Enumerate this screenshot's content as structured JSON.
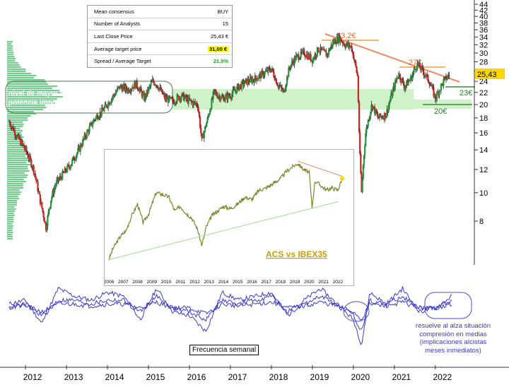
{
  "table": {
    "rows": [
      {
        "label": "Mean consensus",
        "value": "BUY",
        "highlight": "none"
      },
      {
        "label": "Number of Analysts",
        "value": "15",
        "highlight": "none"
      },
      {
        "label": "Last Close Price",
        "value": "25,43 €",
        "highlight": "none"
      },
      {
        "label": "Average target price",
        "value": "31,00 €",
        "highlight": "yellow"
      },
      {
        "label": "Spread / Average Target",
        "value": "21,9%",
        "highlight": "green"
      }
    ]
  },
  "annotations": {
    "resistance_top": "33,2€",
    "resistance_mid": "27€",
    "support_a": "23€",
    "support_b": "20€",
    "last_price_label": "25,43",
    "support_text_line1": "nivel de mayor negociación",
    "support_text_line2": "potencia importante soporte",
    "frequency": "Frecuencia semanal",
    "note_line1": "resuelve al alza situación",
    "note_line2": "compresión en medias",
    "note_line3": "(implicaciones alcistas",
    "note_line4": "meses inmediatos)"
  },
  "inset": {
    "title": "ACS vs IBEX35",
    "xticks": [
      "2006",
      "2007",
      "2008",
      "2009",
      "2010",
      "2011",
      "2012",
      "2013",
      "2014",
      "2015",
      "2016",
      "2017",
      "2018",
      "2019",
      "2020",
      "2021",
      "2022"
    ]
  },
  "chart_data": [
    {
      "type": "line",
      "title": "",
      "scale": "log",
      "xlabel": "",
      "ylabel": "",
      "ylim": [
        6.5,
        46
      ],
      "yticks": [
        8,
        10,
        12,
        14,
        16,
        18,
        20,
        22,
        24,
        26,
        28,
        30,
        32,
        34,
        36,
        38,
        40,
        42,
        44
      ],
      "ytick_labels": [
        "8",
        "10",
        "12",
        "14",
        "16",
        "18",
        "20",
        "22",
        "24",
        "26",
        "28",
        "30",
        "32",
        "34",
        "36",
        "38",
        "40",
        "42",
        "44"
      ],
      "xticks": [
        2012,
        2013,
        2014,
        2015,
        2016,
        2017,
        2018,
        2019,
        2020,
        2021,
        2022
      ],
      "xtick_labels": [
        "2012",
        "2013",
        "2014",
        "2015",
        "2016",
        "2017",
        "2018",
        "2019",
        "2020",
        "2021",
        "2022"
      ],
      "xlim": [
        2011.55,
        2022.9
      ],
      "series": [
        {
          "color": "#222222",
          "x": [
            2011.6,
            2011.8,
            2012.0,
            2012.2,
            2012.35,
            2012.5,
            2012.62,
            2012.75,
            2012.9,
            2013.1,
            2013.3,
            2013.5,
            2013.7,
            2013.9,
            2014.1,
            2014.3,
            2014.5,
            2014.7,
            2014.9,
            2015.1,
            2015.2,
            2015.4,
            2015.6,
            2015.8,
            2016.0,
            2016.2,
            2016.3,
            2016.45,
            2016.6,
            2016.8,
            2017.0,
            2017.2,
            2017.4,
            2017.6,
            2017.8,
            2018.0,
            2018.15,
            2018.3,
            2018.45,
            2018.6,
            2018.8,
            2019.0,
            2019.15,
            2019.35,
            2019.5,
            2019.65,
            2019.8,
            2019.95,
            2020.1,
            2020.15,
            2020.2,
            2020.3,
            2020.45,
            2020.6,
            2020.8,
            2020.95,
            2021.1,
            2021.25,
            2021.4,
            2021.55,
            2021.7,
            2021.85,
            2022.0,
            2022.1,
            2022.2,
            2022.35
          ],
          "y": [
            17.5,
            15.5,
            14,
            12,
            9.5,
            7.6,
            9.5,
            10.8,
            11.5,
            12.5,
            14,
            16,
            18,
            19.2,
            21,
            23,
            22.5,
            23.5,
            21,
            24,
            23.5,
            21,
            20.5,
            21.5,
            20.5,
            20,
            15,
            18,
            22,
            21,
            21.5,
            23,
            24,
            24.5,
            25.5,
            26.5,
            23.5,
            22,
            27,
            29,
            30,
            28.5,
            31,
            29.5,
            32.5,
            33.8,
            32,
            31.5,
            25,
            14,
            10,
            16,
            20,
            18,
            18.5,
            22,
            25.5,
            23,
            24.5,
            27.5,
            26,
            24,
            21,
            22.5,
            24,
            25.43
          ]
        }
      ]
    },
    {
      "type": "line",
      "title": "ACS vs IBEX35",
      "xlabel": "",
      "ylabel": "",
      "xlim": [
        2006,
        2022.5
      ],
      "ylim": [
        0,
        1
      ],
      "xticks": [
        2006,
        2007,
        2008,
        2009,
        2010,
        2011,
        2012,
        2013,
        2014,
        2015,
        2016,
        2017,
        2018,
        2019,
        2020,
        2021,
        2022
      ],
      "series": [
        {
          "color": "#7a8a2e",
          "x": [
            2006,
            2006.3,
            2006.8,
            2007.2,
            2007.6,
            2008.0,
            2008.4,
            2008.8,
            2009.3,
            2009.8,
            2010.2,
            2010.6,
            2011.0,
            2011.4,
            2011.8,
            2012.2,
            2012.5,
            2012.8,
            2013.2,
            2013.6,
            2014.0,
            2014.5,
            2015.0,
            2015.5,
            2016.0,
            2016.5,
            2017.0,
            2017.5,
            2018.0,
            2018.4,
            2018.8,
            2019.2,
            2019.6,
            2020.0,
            2020.2,
            2020.4,
            2020.8,
            2021.2,
            2021.6,
            2022.0,
            2022.3
          ],
          "y": [
            0.1,
            0.2,
            0.3,
            0.35,
            0.48,
            0.58,
            0.42,
            0.5,
            0.68,
            0.66,
            0.64,
            0.52,
            0.56,
            0.5,
            0.46,
            0.36,
            0.22,
            0.38,
            0.48,
            0.52,
            0.56,
            0.54,
            0.58,
            0.64,
            0.62,
            0.7,
            0.72,
            0.76,
            0.8,
            0.86,
            0.9,
            0.93,
            0.88,
            0.85,
            0.55,
            0.78,
            0.74,
            0.7,
            0.72,
            0.7,
            0.8
          ]
        },
        {
          "color": "#9fdc8f",
          "x": [
            2006,
            2022
          ],
          "y": [
            0.1,
            0.6
          ]
        },
        {
          "color": "#e98a5a",
          "x": [
            2019.2,
            2022.3
          ],
          "y": [
            0.95,
            0.82
          ]
        }
      ]
    },
    {
      "type": "line",
      "title": "",
      "xlabel": "",
      "ylabel": "",
      "xlim": [
        2011.55,
        2022.9
      ],
      "ylim": [
        -1,
        1
      ],
      "series": [
        {
          "color": "#3b3bd0",
          "x": [
            2011.6,
            2012.0,
            2012.4,
            2012.8,
            2013.2,
            2013.6,
            2014.0,
            2014.4,
            2014.8,
            2015.2,
            2015.6,
            2016.0,
            2016.4,
            2016.8,
            2017.2,
            2017.6,
            2018.0,
            2018.4,
            2018.8,
            2019.2,
            2019.6,
            2020.0,
            2020.2,
            2020.4,
            2020.8,
            2021.2,
            2021.6,
            2022.0,
            2022.4
          ],
          "y": [
            0.1,
            0.2,
            -0.4,
            0.5,
            0.3,
            0.2,
            0.4,
            0.3,
            -0.3,
            0.5,
            -0.1,
            -0.2,
            -0.6,
            0.4,
            0.2,
            0.3,
            0.4,
            -0.2,
            0.2,
            0.5,
            0.1,
            -0.3,
            -0.95,
            0.4,
            0.1,
            0.5,
            -0.1,
            0.0,
            0.3
          ]
        },
        {
          "color": "#3b3bd0",
          "x": [
            2011.6,
            2012.0,
            2012.4,
            2012.8,
            2013.2,
            2013.6,
            2014.0,
            2014.4,
            2014.8,
            2015.2,
            2015.6,
            2016.0,
            2016.4,
            2016.8,
            2017.2,
            2017.6,
            2018.0,
            2018.4,
            2018.8,
            2019.2,
            2019.6,
            2020.0,
            2020.2,
            2020.4,
            2020.8,
            2021.2,
            2021.6,
            2022.0,
            2022.4
          ],
          "y": [
            0.0,
            0.1,
            -0.2,
            0.2,
            0.2,
            0.1,
            0.2,
            0.2,
            -0.1,
            0.3,
            0.0,
            -0.1,
            -0.3,
            0.2,
            0.1,
            0.2,
            0.3,
            -0.1,
            0.1,
            0.3,
            0.1,
            -0.2,
            -0.6,
            0.2,
            0.1,
            0.3,
            0.0,
            0.0,
            0.2
          ]
        },
        {
          "color": "#3b3bd0",
          "x": [
            2011.6,
            2012.0,
            2012.4,
            2012.8,
            2013.2,
            2013.6,
            2014.0,
            2014.4,
            2014.8,
            2015.2,
            2015.6,
            2016.0,
            2016.4,
            2016.8,
            2017.2,
            2017.6,
            2018.0,
            2018.4,
            2018.8,
            2019.2,
            2019.6,
            2020.0,
            2020.2,
            2020.4,
            2020.8,
            2021.2,
            2021.6,
            2022.0,
            2022.4
          ],
          "y": [
            0.05,
            0.05,
            -0.1,
            0.1,
            0.1,
            0.05,
            0.1,
            0.1,
            0.0,
            0.15,
            0.0,
            0.0,
            -0.15,
            0.1,
            0.05,
            0.1,
            0.15,
            0.0,
            0.05,
            0.15,
            0.05,
            -0.1,
            -0.3,
            0.1,
            0.05,
            0.15,
            0.0,
            0.0,
            0.1
          ]
        }
      ]
    }
  ]
}
